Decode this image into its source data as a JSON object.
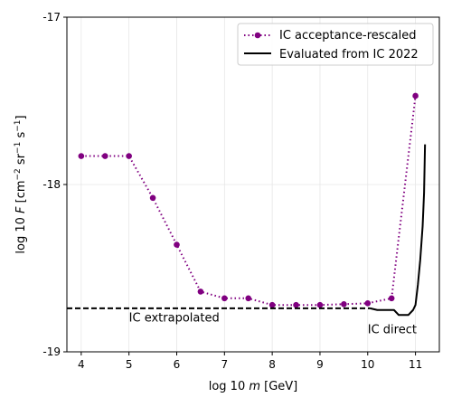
{
  "chart_data": {
    "type": "line",
    "xlabel": "log 10 m [GeV]",
    "ylabel": "log 10 F [cm^-2 sr^-1 s^-1]",
    "xlim": [
      3.7,
      11.5
    ],
    "ylim": [
      -19,
      -17
    ],
    "xticks": [
      4,
      5,
      6,
      7,
      8,
      9,
      10,
      11
    ],
    "yticks": [
      -19,
      -18,
      -17
    ],
    "xtick_labels": [
      "4",
      "5",
      "6",
      "7",
      "8",
      "9",
      "10",
      "11"
    ],
    "ytick_labels": [
      "-19",
      "-18",
      "-17"
    ],
    "grid": true,
    "legend_position": "top-right",
    "series": [
      {
        "name": "IC acceptance-rescaled",
        "color": "#800080",
        "style": "dotted-markers",
        "x": [
          4.0,
          4.5,
          5.0,
          5.5,
          6.0,
          6.5,
          7.0,
          7.5,
          8.0,
          8.5,
          9.0,
          9.5,
          10.0,
          10.5,
          11.0
        ],
        "y": [
          -17.83,
          -17.83,
          -17.83,
          -18.08,
          -18.36,
          -18.64,
          -18.68,
          -18.68,
          -18.72,
          -18.72,
          -18.72,
          -18.715,
          -18.71,
          -18.68,
          -17.47
        ]
      },
      {
        "name": "Evaluated from IC 2022",
        "color": "#000000",
        "style": "solid",
        "x": [
          10.05,
          10.2,
          10.4,
          10.55,
          10.65,
          10.75,
          10.85,
          10.95,
          11.0,
          11.05,
          11.1,
          11.15,
          11.18,
          11.2
        ],
        "y": [
          -18.74,
          -18.75,
          -18.75,
          -18.75,
          -18.78,
          -18.78,
          -18.78,
          -18.75,
          -18.72,
          -18.6,
          -18.45,
          -18.25,
          -18.05,
          -17.76
        ]
      },
      {
        "name": "",
        "color": "#000000",
        "style": "dashed",
        "x": [
          3.7,
          10.05
        ],
        "y": [
          -18.74,
          -18.74
        ]
      }
    ],
    "annotations": [
      {
        "text": "IC extrapolated",
        "x": 5.0,
        "y": -18.82
      },
      {
        "text": "IC direct",
        "x": 10.0,
        "y": -18.89
      }
    ]
  }
}
